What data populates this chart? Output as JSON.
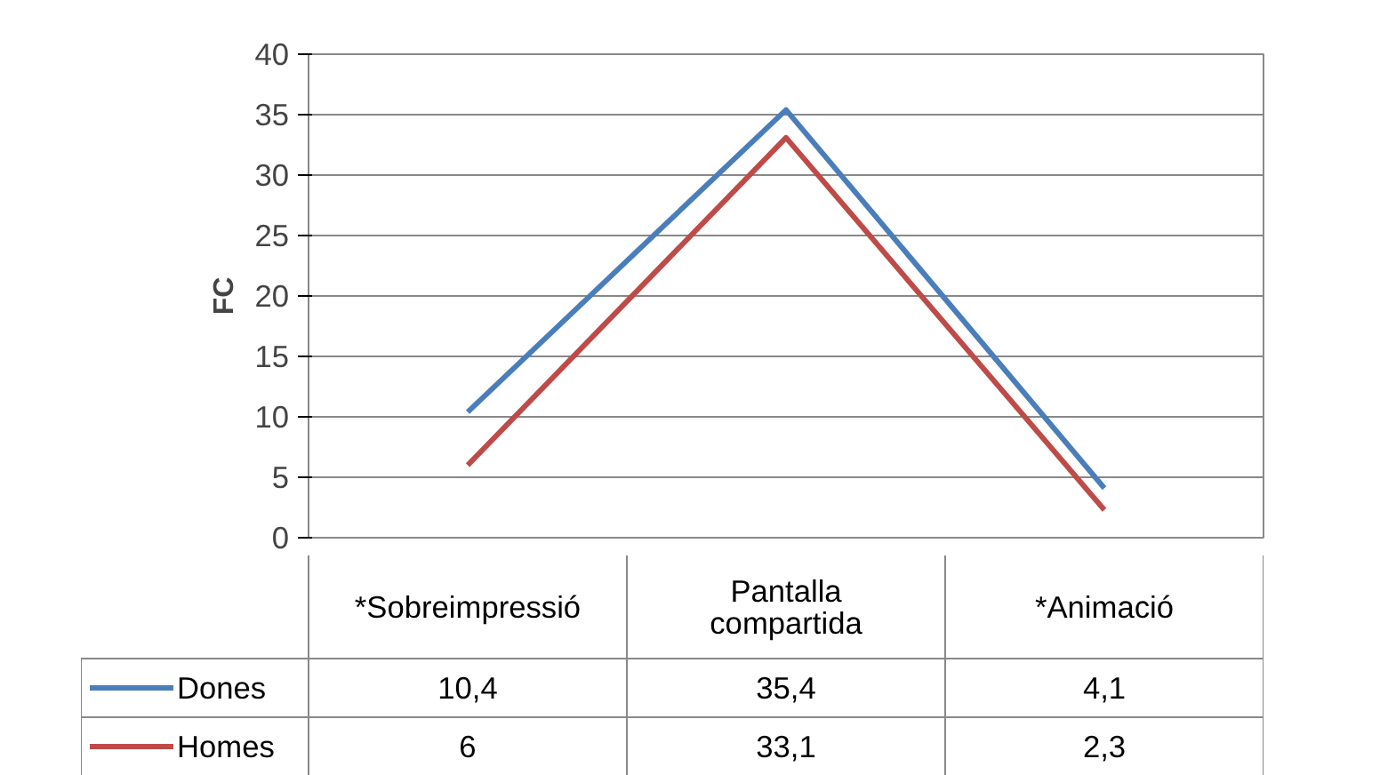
{
  "chart_data": {
    "type": "line",
    "ylabel": "FC",
    "categories": [
      "*Sobreimpressió",
      "Pantalla\ncompartida",
      "*Animació"
    ],
    "series": [
      {
        "name": "Dones",
        "color": "#4a7ebb",
        "values": [
          10.4,
          35.4,
          4.1
        ],
        "value_labels": [
          "10,4",
          "35,4",
          "4,1"
        ]
      },
      {
        "name": "Homes",
        "color": "#be4b48",
        "values": [
          6,
          33.1,
          2.3
        ],
        "value_labels": [
          "6",
          "33,1",
          "2,3"
        ]
      }
    ],
    "ylim": [
      0,
      40
    ],
    "yticks": [
      0,
      5,
      10,
      15,
      20,
      25,
      30,
      35,
      40
    ],
    "grid": "y",
    "legend": "bottom",
    "marker": "none",
    "line_style": "solid"
  }
}
